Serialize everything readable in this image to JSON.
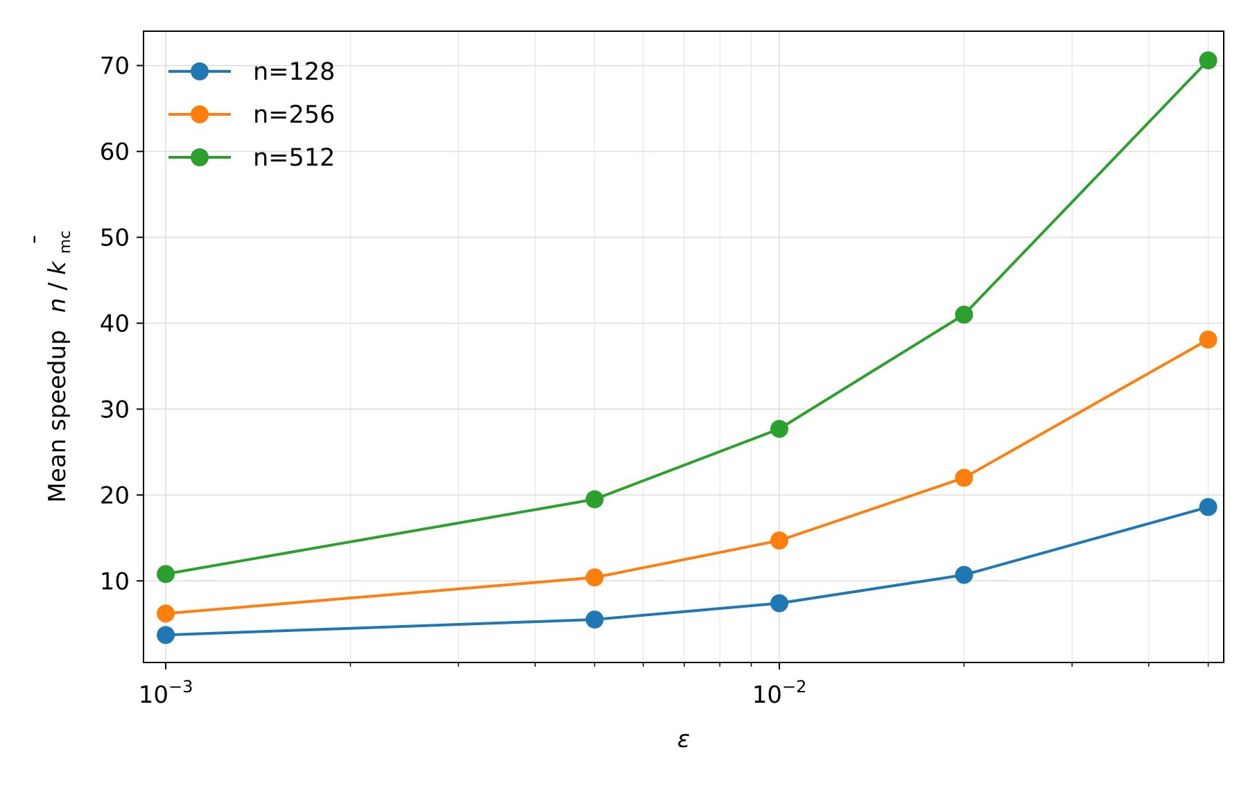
{
  "chart_data": {
    "type": "line",
    "xscale": "log",
    "xlabel": "ε",
    "ylabel": "Mean speedup",
    "ylabel_math": {
      "n": "n",
      "slash": "/",
      "k": "k",
      "bar": "¯",
      "sub": "mc"
    },
    "xlim": [
      0.00092,
      0.053
    ],
    "ylim": [
      0.5,
      74.0
    ],
    "x": [
      0.001,
      0.005,
      0.01,
      0.02,
      0.05
    ],
    "xticks": [
      {
        "value": 0.001,
        "base": "10",
        "exp": "−3"
      },
      {
        "value": 0.01,
        "base": "10",
        "exp": "−2"
      }
    ],
    "yticks": [
      10,
      20,
      30,
      40,
      50,
      60,
      70
    ],
    "grid": true,
    "legend_position": "top-left",
    "series": [
      {
        "name": "n=128",
        "color": "#1f77b4",
        "values": [
          3.7,
          5.5,
          7.4,
          10.7,
          18.6
        ]
      },
      {
        "name": "n=256",
        "color": "#ff7f0e",
        "values": [
          6.2,
          10.4,
          14.7,
          22.0,
          38.1
        ]
      },
      {
        "name": "n=512",
        "color": "#2ca02c",
        "values": [
          10.8,
          19.5,
          27.7,
          41.0,
          70.6
        ]
      }
    ]
  }
}
